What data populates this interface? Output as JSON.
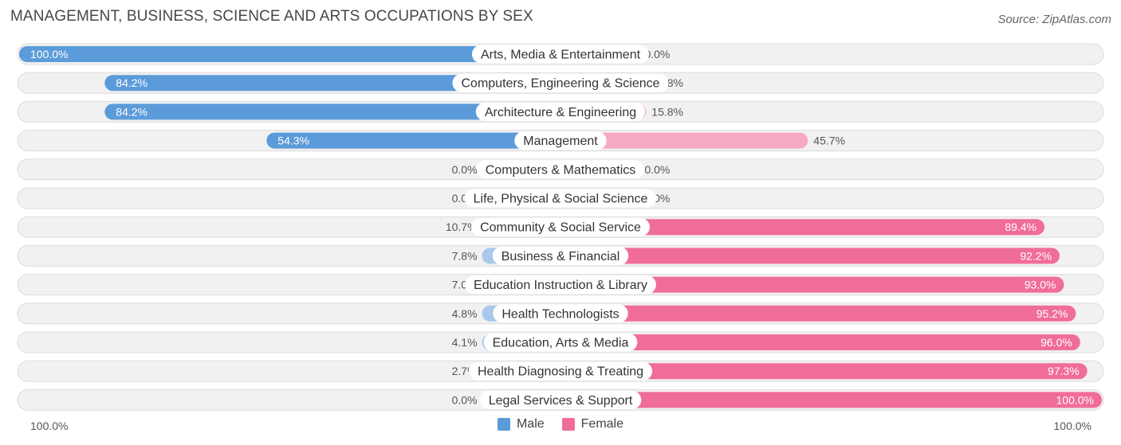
{
  "title": "MANAGEMENT, BUSINESS, SCIENCE AND ARTS OCCUPATIONS BY SEX",
  "source": "Source: ZipAtlas.com",
  "colors": {
    "male_strong": "#5b9bd9",
    "male_light": "#a9c8ec",
    "female_strong": "#f06c9b",
    "female_light": "#f6a9c3",
    "row_bg": "#f1f1f1",
    "row_border": "#dcdcdc"
  },
  "legend": {
    "male": "Male",
    "female": "Female"
  },
  "axis": {
    "left_label": "100.0%",
    "right_label": "100.0%"
  },
  "chart_data": {
    "type": "bar",
    "orientation": "diverging-horizontal",
    "categories": [
      "Arts, Media & Entertainment",
      "Computers, Engineering & Science",
      "Architecture & Engineering",
      "Management",
      "Computers & Mathematics",
      "Life, Physical & Social Science",
      "Community & Social Service",
      "Business & Financial",
      "Education Instruction & Library",
      "Health Technologists",
      "Education, Arts & Media",
      "Health Diagnosing & Treating",
      "Legal Services & Support"
    ],
    "series": [
      {
        "name": "Male",
        "values": [
          100.0,
          84.2,
          84.2,
          54.3,
          0.0,
          0.0,
          10.7,
          7.8,
          7.0,
          4.8,
          4.1,
          2.7,
          0.0
        ],
        "labels": [
          "100.0%",
          "84.2%",
          "84.2%",
          "54.3%",
          "0.0%",
          "0.0%",
          "10.7%",
          "7.8%",
          "7.0%",
          "4.8%",
          "4.1%",
          "2.7%",
          "0.0%"
        ]
      },
      {
        "name": "Female",
        "values": [
          0.0,
          15.8,
          15.8,
          45.7,
          0.0,
          0.0,
          89.4,
          92.2,
          93.0,
          95.2,
          96.0,
          97.3,
          100.0
        ],
        "labels": [
          "0.0%",
          "15.8%",
          "15.8%",
          "45.7%",
          "0.0%",
          "0.0%",
          "89.4%",
          "92.2%",
          "93.0%",
          "95.2%",
          "96.0%",
          "97.3%",
          "100.0%"
        ]
      }
    ],
    "xlim": [
      -100,
      100
    ],
    "legend_position": "bottom-center"
  }
}
